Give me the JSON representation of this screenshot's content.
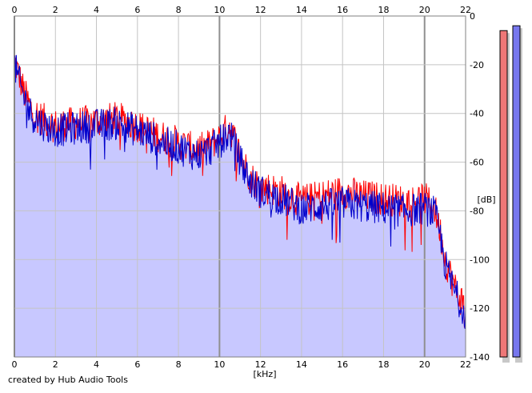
{
  "footer": {
    "credit": "created by Hub Audio Tools"
  },
  "chart_data": {
    "type": "area",
    "title": "",
    "xlabel": "[kHz]",
    "ylabel": "[dB]",
    "xlim": [
      0,
      22
    ],
    "ylim": [
      -140,
      0
    ],
    "x_ticks": [
      0,
      2,
      4,
      6,
      8,
      10,
      12,
      14,
      16,
      18,
      20,
      22
    ],
    "y_ticks": [
      0,
      -20,
      -40,
      -60,
      -80,
      -100,
      -120,
      -140
    ],
    "y_tick_labels": [
      "0",
      "-20",
      "-40",
      "-60",
      "-80",
      "-100",
      "-120",
      "-140"
    ],
    "grid": true,
    "fill_color": "#c8c8ff",
    "series": [
      {
        "color": "#ff0000",
        "x": [
          0,
          0.2,
          0.5,
          0.8,
          1,
          1.5,
          2,
          3,
          4,
          5,
          6,
          7,
          8,
          8.5,
          9,
          9.5,
          10,
          10.5,
          11,
          11.5,
          12,
          13,
          14,
          15,
          16,
          17,
          18,
          19,
          20,
          20.5,
          20.8,
          21,
          21.5,
          22
        ],
        "y": [
          -18,
          -24,
          -32,
          -38,
          -40,
          -43,
          -45,
          -44,
          -43,
          -42,
          -45,
          -49,
          -52,
          -54,
          -55,
          -53,
          -50,
          -45,
          -57,
          -66,
          -70,
          -72,
          -76,
          -74,
          -72,
          -74,
          -75,
          -76,
          -75,
          -79,
          -90,
          -100,
          -112,
          -120
        ]
      },
      {
        "color": "#0000cc",
        "x": [
          0,
          0.2,
          0.5,
          0.8,
          1,
          1.5,
          2,
          3,
          4,
          5,
          6,
          7,
          8,
          8.5,
          9,
          9.5,
          10,
          10.5,
          11,
          11.5,
          12,
          13,
          14,
          15,
          16,
          17,
          18,
          19,
          20,
          20.5,
          20.8,
          21,
          21.5,
          22
        ],
        "y": [
          -20,
          -26,
          -34,
          -40,
          -42,
          -45,
          -47,
          -46,
          -45,
          -44,
          -47,
          -51,
          -54,
          -56,
          -57,
          -55,
          -52,
          -48,
          -59,
          -68,
          -72,
          -75,
          -79,
          -78,
          -77,
          -78,
          -79,
          -80,
          -79,
          -81,
          -92,
          -102,
          -114,
          -122
        ]
      }
    ],
    "level_meters": [
      {
        "color": "#ee7777",
        "level_db": -6
      },
      {
        "color": "#7777ee",
        "level_db": -4
      }
    ]
  }
}
